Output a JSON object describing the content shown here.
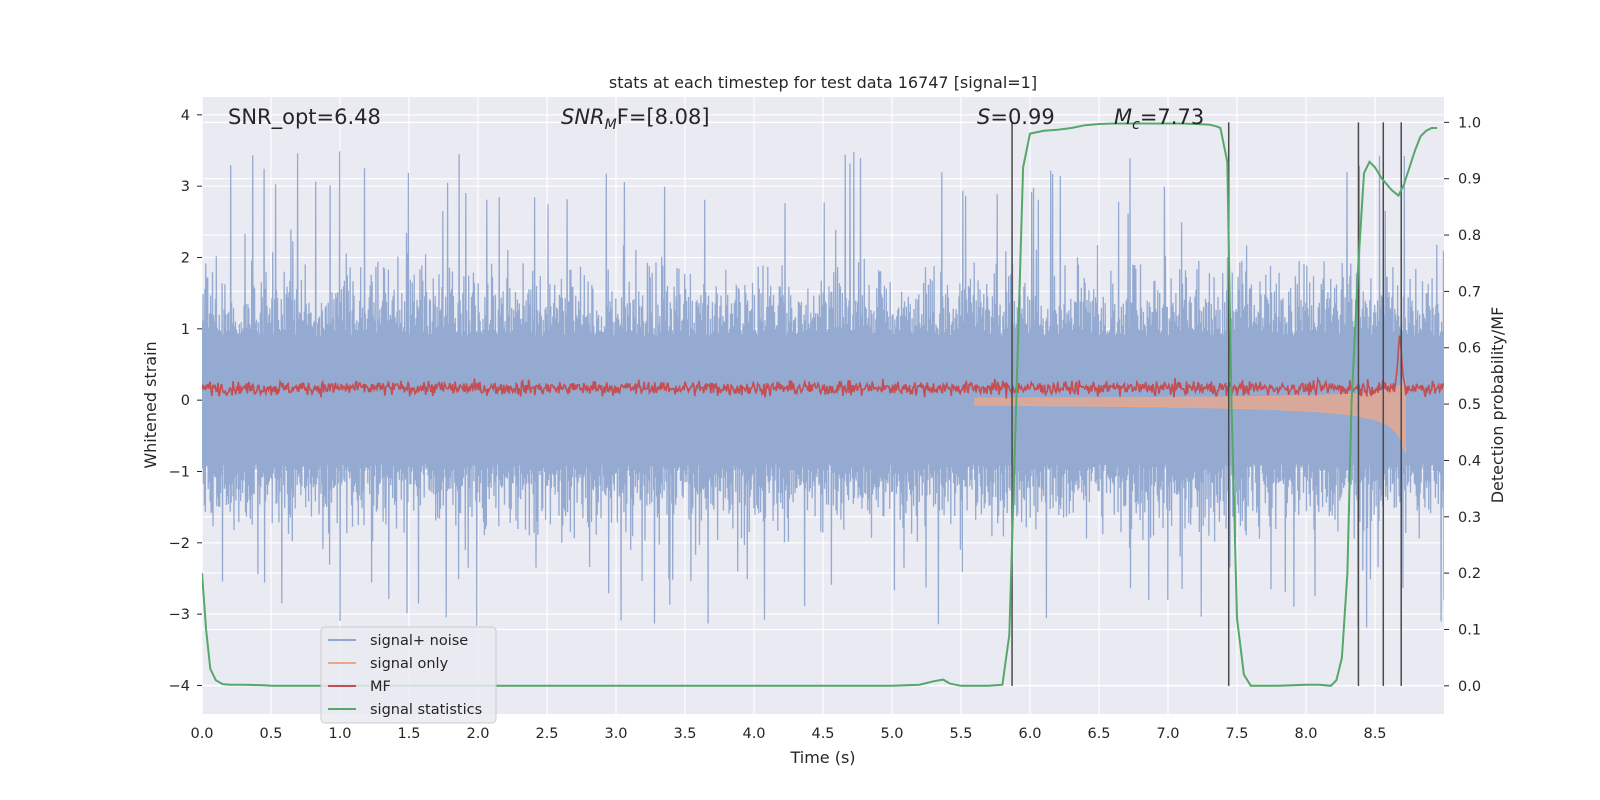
{
  "chart_data": {
    "type": "line",
    "title": "stats at each timestep for test data 16747 [signal=1]",
    "xlabel": "Time (s)",
    "ylabel_left": "Whitened strain",
    "ylabel_right": "Detection probability/MF",
    "xlim": [
      0.0,
      9.0
    ],
    "ylim_left": [
      -4.4,
      4.25
    ],
    "ylim_right": [
      -0.05,
      1.045
    ],
    "x_ticks": [
      0.0,
      0.5,
      1.0,
      1.5,
      2.0,
      2.5,
      3.0,
      3.5,
      4.0,
      4.5,
      5.0,
      5.5,
      6.0,
      6.5,
      7.0,
      7.5,
      8.0,
      8.5
    ],
    "x_tick_labels": [
      "0.0",
      "0.5",
      "1.0",
      "1.5",
      "2.0",
      "2.5",
      "3.0",
      "3.5",
      "4.0",
      "4.5",
      "5.0",
      "5.5",
      "6.0",
      "6.5",
      "7.0",
      "7.5",
      "8.0",
      "8.5"
    ],
    "y_left_ticks": [
      4,
      3,
      2,
      1,
      0,
      -1,
      -2,
      -3,
      -4
    ],
    "y_left_tick_labels": [
      "4",
      "3",
      "2",
      "1",
      "0",
      "−1",
      "−2",
      "−3",
      "−4"
    ],
    "y_right_ticks": [
      1.0,
      0.9,
      0.8,
      0.7,
      0.6,
      0.5,
      0.4,
      0.3,
      0.2,
      0.1,
      0.0
    ],
    "y_right_tick_labels": [
      "1.0",
      "0.9",
      "0.8",
      "0.7",
      "0.6",
      "0.5",
      "0.4",
      "0.3",
      "0.2",
      "0.1",
      "0.0"
    ],
    "annotations": {
      "snr_opt": "SNR_opt=6.48",
      "snr_mf_label": "SNR",
      "snr_mf_sub": "M",
      "snr_mf_rest": "F=[8.08]",
      "s_label": "S",
      "s_rest": "=0.99",
      "mc_label": "M",
      "mc_sub": "c",
      "mc_rest": "=7.73"
    },
    "vertical_markers": [
      5.87,
      7.44,
      8.38,
      8.56,
      8.69
    ],
    "series": [
      {
        "name": "signal+ noise",
        "color": "#8fa6cf",
        "axis": "left",
        "description": "whitened strain, noise bounded roughly -3.3 to 3.5"
      },
      {
        "name": "signal only",
        "color": "#e9a88c",
        "axis": "left",
        "description": "chirp envelope growing toward 8.7 s"
      },
      {
        "name": "MF",
        "color": "#c44e52",
        "axis": "left",
        "description": "matched-filter output around 0.2 with peak near 8.68 s"
      },
      {
        "name": "signal statistics",
        "color": "#55a868",
        "axis": "right",
        "x": [
          0.0,
          0.03,
          0.06,
          0.1,
          0.15,
          0.2,
          0.3,
          0.45,
          0.5,
          1.0,
          2.0,
          3.0,
          4.0,
          5.0,
          5.2,
          5.3,
          5.37,
          5.42,
          5.5,
          5.6,
          5.7,
          5.8,
          5.85,
          5.9,
          5.95,
          6.0,
          6.1,
          6.2,
          6.3,
          6.4,
          6.5,
          6.6,
          6.7,
          6.8,
          6.9,
          7.0,
          7.1,
          7.2,
          7.3,
          7.35,
          7.38,
          7.43,
          7.46,
          7.5,
          7.55,
          7.6,
          7.65,
          7.8,
          8.0,
          8.1,
          8.18,
          8.22,
          8.26,
          8.3,
          8.33,
          8.38,
          8.42,
          8.46,
          8.5,
          8.55,
          8.62,
          8.67,
          8.71,
          8.75,
          8.79,
          8.83,
          8.87,
          8.91,
          8.95
        ],
        "y": [
          0.2,
          0.1,
          0.03,
          0.01,
          0.003,
          0.002,
          0.002,
          0.001,
          0.0,
          0.0,
          0.0,
          0.0,
          0.0,
          0.0,
          0.002,
          0.008,
          0.011,
          0.004,
          0.0,
          0.0,
          0.0,
          0.002,
          0.09,
          0.5,
          0.92,
          0.98,
          0.985,
          0.987,
          0.99,
          0.995,
          0.997,
          0.998,
          0.998,
          0.998,
          0.998,
          0.998,
          0.998,
          0.997,
          0.996,
          0.993,
          0.99,
          0.93,
          0.5,
          0.12,
          0.02,
          0.0,
          0.0,
          0.0,
          0.002,
          0.002,
          0.0,
          0.01,
          0.05,
          0.2,
          0.5,
          0.75,
          0.91,
          0.93,
          0.92,
          0.9,
          0.88,
          0.87,
          0.89,
          0.92,
          0.95,
          0.975,
          0.985,
          0.99,
          0.99
        ]
      }
    ],
    "legend": {
      "placement": "lower-left",
      "entries": [
        "signal+ noise",
        "signal only",
        "MF",
        "signal statistics"
      ]
    },
    "grid": true,
    "colors": {
      "background": "#eaeaf2",
      "grid": "#ffffff",
      "marker": "#4a4a4a"
    }
  }
}
